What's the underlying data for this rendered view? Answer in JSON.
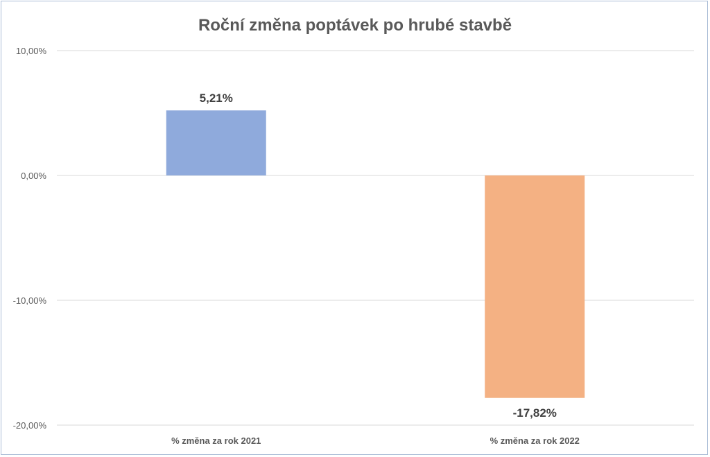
{
  "chart_data": {
    "type": "bar",
    "title": "Roční změna poptávek po hrubé stavbě",
    "xlabel": "",
    "ylabel": "",
    "categories": [
      "% změna za rok 2021",
      "% změna za rok 2022"
    ],
    "values": [
      5.21,
      -17.82
    ],
    "value_labels": [
      "5,21%",
      "-17,82%"
    ],
    "bar_colors": [
      "#8faadc",
      "#f4b183"
    ],
    "ylim": [
      -20,
      10
    ],
    "yticks": [
      10,
      0,
      -10,
      -20
    ],
    "ytick_labels": [
      "10,00%",
      "0,00%",
      "-10,00%",
      "-20,00%"
    ],
    "grid": true,
    "legend": "none"
  },
  "colors": {
    "frame_border": "#a9bcd6",
    "gridline": "#d9d9d9",
    "text": "#595959",
    "data_label_text": "#404040"
  }
}
